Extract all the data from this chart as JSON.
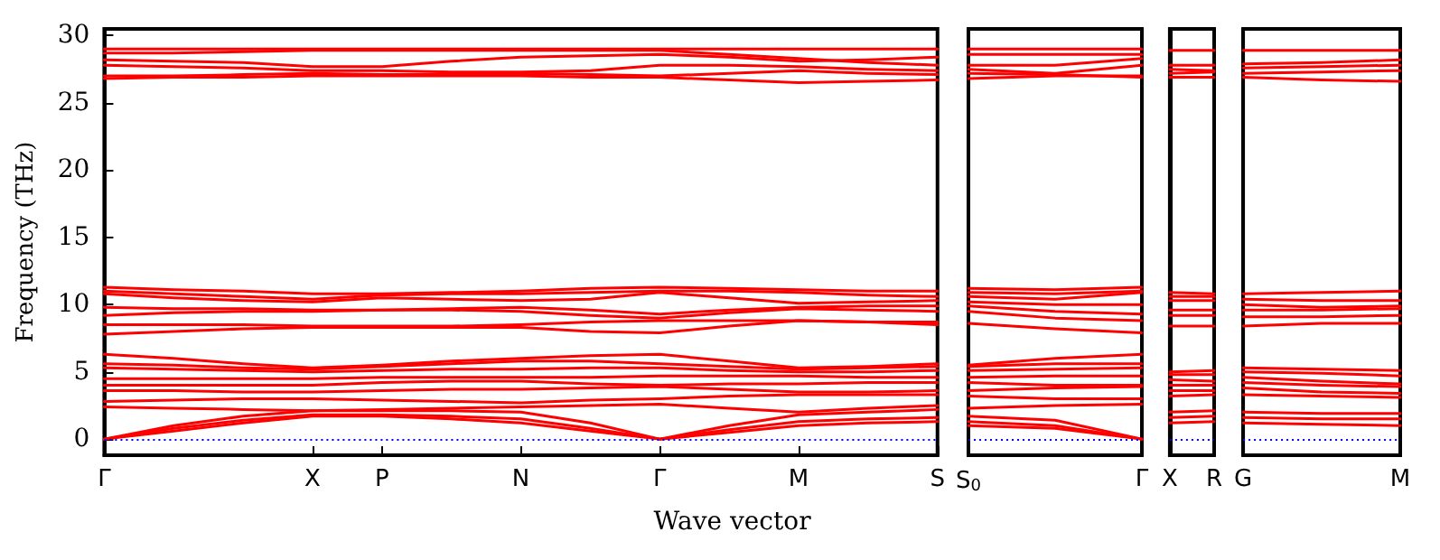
{
  "chart_data": [
    {
      "type": "line",
      "ylabel": "Frequency (THz)",
      "xlabel": "Wave vector",
      "categories": [
        "Γ",
        null,
        null,
        "X",
        "P",
        null,
        "N",
        null,
        "Γ",
        null,
        "M",
        null,
        "S"
      ],
      "ylim": [
        -1.2,
        30.5
      ],
      "yticks": [
        0,
        5,
        10,
        15,
        20,
        25,
        30
      ],
      "marker": "none",
      "line_style": "solid",
      "ref_lines": [
        {
          "axis": "y",
          "value": 0,
          "color": "#0000ff",
          "line_style": "dotted"
        }
      ],
      "series": [
        {
          "color": "#ff0000",
          "values": [
            0,
            0.6,
            1.2,
            1.7,
            1.7,
            1.5,
            1.2,
            0.6,
            0,
            0.5,
            1.0,
            1.2,
            1.3
          ]
        },
        {
          "color": "#ff0000",
          "values": [
            0,
            0.8,
            1.4,
            1.8,
            1.8,
            1.7,
            1.5,
            0.8,
            0,
            0.7,
            1.3,
            1.5,
            1.6
          ]
        },
        {
          "color": "#ff0000",
          "values": [
            0,
            1.0,
            1.7,
            2.1,
            2.1,
            2.1,
            2.0,
            1.2,
            0,
            1.0,
            1.8,
            2.0,
            2.2
          ]
        },
        {
          "color": "#ff0000",
          "values": [
            2.4,
            2.3,
            2.2,
            2.1,
            2.2,
            2.3,
            2.4,
            2.5,
            2.6,
            2.3,
            2.0,
            2.3,
            2.5
          ]
        },
        {
          "color": "#ff0000",
          "values": [
            2.8,
            2.9,
            3.0,
            3.0,
            2.9,
            2.8,
            2.7,
            2.9,
            3.0,
            3.2,
            3.3,
            3.3,
            3.3
          ]
        },
        {
          "color": "#ff0000",
          "values": [
            3.6,
            3.6,
            3.5,
            3.5,
            3.6,
            3.7,
            3.7,
            3.8,
            3.9,
            3.7,
            3.5,
            3.5,
            3.6
          ]
        },
        {
          "color": "#ff0000",
          "values": [
            4.0,
            4.0,
            4.0,
            4.0,
            4.2,
            4.3,
            4.3,
            4.1,
            4.0,
            4.1,
            4.1,
            4.2,
            4.2
          ]
        },
        {
          "color": "#ff0000",
          "values": [
            4.5,
            4.5,
            4.5,
            4.5,
            4.6,
            4.6,
            4.6,
            4.6,
            4.7,
            4.7,
            4.7,
            4.6,
            4.6
          ]
        },
        {
          "color": "#ff0000",
          "values": [
            5.3,
            5.2,
            5.1,
            5.0,
            5.1,
            5.2,
            5.2,
            5.3,
            5.3,
            5.1,
            5.0,
            5.0,
            5.1
          ]
        },
        {
          "color": "#ff0000",
          "values": [
            5.6,
            5.5,
            5.3,
            5.2,
            5.4,
            5.6,
            5.8,
            5.8,
            5.6,
            5.4,
            5.2,
            5.3,
            5.4
          ]
        },
        {
          "color": "#ff0000",
          "values": [
            6.3,
            6.0,
            5.6,
            5.3,
            5.5,
            5.8,
            6.0,
            6.2,
            6.3,
            5.8,
            5.3,
            5.4,
            5.6
          ]
        },
        {
          "color": "#ff0000",
          "values": [
            7.8,
            8.0,
            8.2,
            8.3,
            8.3,
            8.3,
            8.3,
            8.0,
            7.9,
            8.4,
            8.8,
            8.7,
            8.5
          ]
        },
        {
          "color": "#ff0000",
          "values": [
            8.5,
            8.5,
            8.5,
            8.4,
            8.4,
            8.4,
            8.5,
            8.7,
            8.8,
            8.8,
            8.8,
            8.7,
            8.7
          ]
        },
        {
          "color": "#ff0000",
          "values": [
            9.2,
            9.4,
            9.5,
            9.5,
            9.6,
            9.6,
            9.5,
            9.2,
            9.0,
            9.4,
            9.7,
            9.6,
            9.5
          ]
        },
        {
          "color": "#ff0000",
          "values": [
            9.8,
            9.7,
            9.7,
            9.6,
            9.6,
            9.7,
            9.8,
            9.6,
            9.3,
            9.6,
            9.8,
            9.9,
            9.9
          ]
        },
        {
          "color": "#ff0000",
          "values": [
            10.8,
            10.5,
            10.3,
            10.2,
            10.5,
            10.4,
            10.3,
            10.4,
            10.9,
            10.5,
            10.1,
            10.2,
            10.3
          ]
        },
        {
          "color": "#ff0000",
          "values": [
            11.0,
            10.8,
            10.6,
            10.4,
            10.7,
            10.8,
            10.8,
            10.9,
            11.0,
            11.0,
            10.9,
            10.7,
            10.6
          ]
        },
        {
          "color": "#ff0000",
          "values": [
            11.3,
            11.1,
            11.0,
            10.8,
            10.8,
            10.9,
            11.0,
            11.2,
            11.3,
            11.2,
            11.1,
            11.0,
            11.0
          ]
        },
        {
          "color": "#ff0000",
          "values": [
            26.8,
            26.9,
            26.9,
            27.0,
            27.0,
            27.0,
            27.0,
            26.9,
            26.9,
            26.7,
            26.5,
            26.6,
            26.7
          ]
        },
        {
          "color": "#ff0000",
          "values": [
            27.0,
            27.0,
            27.1,
            27.2,
            27.1,
            27.1,
            27.2,
            27.1,
            27.0,
            27.2,
            27.4,
            27.2,
            27.1
          ]
        },
        {
          "color": "#ff0000",
          "values": [
            27.8,
            27.7,
            27.6,
            27.4,
            27.4,
            27.3,
            27.3,
            27.4,
            27.8,
            27.8,
            27.7,
            27.5,
            27.4
          ]
        },
        {
          "color": "#ff0000",
          "values": [
            28.2,
            28.1,
            28.0,
            27.7,
            27.7,
            28.1,
            28.4,
            28.5,
            28.6,
            28.4,
            28.1,
            28.2,
            28.4
          ]
        },
        {
          "color": "#ff0000",
          "values": [
            28.7,
            28.7,
            28.8,
            28.9,
            28.9,
            28.9,
            28.9,
            28.9,
            28.9,
            28.6,
            28.3,
            28.0,
            27.8
          ]
        },
        {
          "color": "#ff0000",
          "values": [
            29.0,
            29.0,
            29.0,
            29.0,
            29.0,
            29.0,
            29.0,
            29.0,
            29.0,
            29.0,
            29.0,
            29.0,
            29.0
          ]
        }
      ]
    },
    {
      "type": "line",
      "categories": [
        "S$_{0}$",
        null,
        "Γ"
      ],
      "ylim": [
        -1.2,
        30.5
      ],
      "yticks": [
        0,
        5,
        10,
        15,
        20,
        25,
        30
      ],
      "tick_labels": "x",
      "marker": "none",
      "line_style": "solid",
      "ref_lines": [
        {
          "axis": "y",
          "value": 0,
          "color": "#0000ff",
          "line_style": "dotted"
        }
      ],
      "series": [
        {
          "color": "#ff0000",
          "values": [
            1.0,
            0.8,
            0
          ]
        },
        {
          "color": "#ff0000",
          "values": [
            1.3,
            1.0,
            0
          ]
        },
        {
          "color": "#ff0000",
          "values": [
            1.7,
            1.4,
            0
          ]
        },
        {
          "color": "#ff0000",
          "values": [
            2.3,
            2.5,
            2.6
          ]
        },
        {
          "color": "#ff0000",
          "values": [
            3.2,
            3.0,
            3.0
          ]
        },
        {
          "color": "#ff0000",
          "values": [
            3.6,
            3.8,
            3.9
          ]
        },
        {
          "color": "#ff0000",
          "values": [
            4.2,
            4.0,
            4.0
          ]
        },
        {
          "color": "#ff0000",
          "values": [
            4.6,
            4.7,
            4.7
          ]
        },
        {
          "color": "#ff0000",
          "values": [
            5.1,
            5.2,
            5.3
          ]
        },
        {
          "color": "#ff0000",
          "values": [
            5.4,
            5.6,
            5.6
          ]
        },
        {
          "color": "#ff0000",
          "values": [
            5.5,
            6.0,
            6.3
          ]
        },
        {
          "color": "#ff0000",
          "values": [
            8.6,
            8.2,
            7.9
          ]
        },
        {
          "color": "#ff0000",
          "values": [
            9.5,
            9.0,
            8.8
          ]
        },
        {
          "color": "#ff0000",
          "values": [
            9.9,
            9.5,
            9.3
          ]
        },
        {
          "color": "#ff0000",
          "values": [
            10.2,
            10.0,
            10.0
          ]
        },
        {
          "color": "#ff0000",
          "values": [
            10.6,
            10.4,
            10.9
          ]
        },
        {
          "color": "#ff0000",
          "values": [
            10.9,
            10.8,
            11.0
          ]
        },
        {
          "color": "#ff0000",
          "values": [
            11.2,
            11.1,
            11.3
          ]
        },
        {
          "color": "#ff0000",
          "values": [
            26.8,
            27.0,
            27.0
          ]
        },
        {
          "color": "#ff0000",
          "values": [
            27.2,
            27.1,
            26.9
          ]
        },
        {
          "color": "#ff0000",
          "values": [
            27.5,
            27.2,
            27.8
          ]
        },
        {
          "color": "#ff0000",
          "values": [
            27.8,
            27.8,
            28.3
          ]
        },
        {
          "color": "#ff0000",
          "values": [
            28.6,
            28.6,
            28.6
          ]
        },
        {
          "color": "#ff0000",
          "values": [
            29.0,
            29.0,
            29.0
          ]
        }
      ]
    },
    {
      "type": "line",
      "categories": [
        "X",
        "R"
      ],
      "ylim": [
        -1.2,
        30.5
      ],
      "yticks": [
        0,
        5,
        10,
        15,
        20,
        25,
        30
      ],
      "tick_labels": "x",
      "marker": "none",
      "line_style": "solid",
      "ref_lines": [
        {
          "axis": "y",
          "value": 0,
          "color": "#0000ff",
          "line_style": "dotted"
        }
      ],
      "series": [
        {
          "color": "#ff0000",
          "values": [
            1.2,
            1.3
          ]
        },
        {
          "color": "#ff0000",
          "values": [
            1.6,
            1.7
          ]
        },
        {
          "color": "#ff0000",
          "values": [
            2.0,
            2.1
          ]
        },
        {
          "color": "#ff0000",
          "values": [
            3.2,
            3.3
          ]
        },
        {
          "color": "#ff0000",
          "values": [
            3.6,
            3.6
          ]
        },
        {
          "color": "#ff0000",
          "values": [
            4.0,
            4.0
          ]
        },
        {
          "color": "#ff0000",
          "values": [
            4.4,
            4.3
          ]
        },
        {
          "color": "#ff0000",
          "values": [
            4.8,
            4.8
          ]
        },
        {
          "color": "#ff0000",
          "values": [
            5.0,
            5.1
          ]
        },
        {
          "color": "#ff0000",
          "values": [
            8.4,
            8.4
          ]
        },
        {
          "color": "#ff0000",
          "values": [
            9.2,
            9.2
          ]
        },
        {
          "color": "#ff0000",
          "values": [
            9.6,
            9.6
          ]
        },
        {
          "color": "#ff0000",
          "values": [
            10.3,
            10.3
          ]
        },
        {
          "color": "#ff0000",
          "values": [
            10.6,
            10.6
          ]
        },
        {
          "color": "#ff0000",
          "values": [
            10.9,
            10.8
          ]
        },
        {
          "color": "#ff0000",
          "values": [
            26.9,
            26.9
          ]
        },
        {
          "color": "#ff0000",
          "values": [
            27.2,
            27.3
          ]
        },
        {
          "color": "#ff0000",
          "values": [
            27.5,
            27.4
          ]
        },
        {
          "color": "#ff0000",
          "values": [
            27.8,
            27.8
          ]
        },
        {
          "color": "#ff0000",
          "values": [
            28.9,
            28.9
          ]
        }
      ]
    },
    {
      "type": "line",
      "categories": [
        "G",
        null,
        "M"
      ],
      "ylim": [
        -1.2,
        30.5
      ],
      "yticks": [
        0,
        5,
        10,
        15,
        20,
        25,
        30
      ],
      "tick_labels": "x",
      "marker": "none",
      "line_style": "solid",
      "ref_lines": [
        {
          "axis": "y",
          "value": 0,
          "color": "#0000ff",
          "line_style": "dotted"
        }
      ],
      "series": [
        {
          "color": "#ff0000",
          "values": [
            1.2,
            1.1,
            1.0
          ]
        },
        {
          "color": "#ff0000",
          "values": [
            1.6,
            1.5,
            1.5
          ]
        },
        {
          "color": "#ff0000",
          "values": [
            2.0,
            1.9,
            1.9
          ]
        },
        {
          "color": "#ff0000",
          "values": [
            3.3,
            3.2,
            3.1
          ]
        },
        {
          "color": "#ff0000",
          "values": [
            3.8,
            3.5,
            3.4
          ]
        },
        {
          "color": "#ff0000",
          "values": [
            4.2,
            4.0,
            3.9
          ]
        },
        {
          "color": "#ff0000",
          "values": [
            4.6,
            4.3,
            4.1
          ]
        },
        {
          "color": "#ff0000",
          "values": [
            5.0,
            4.9,
            4.7
          ]
        },
        {
          "color": "#ff0000",
          "values": [
            5.3,
            5.2,
            5.1
          ]
        },
        {
          "color": "#ff0000",
          "values": [
            8.4,
            8.6,
            8.6
          ]
        },
        {
          "color": "#ff0000",
          "values": [
            9.1,
            9.1,
            9.2
          ]
        },
        {
          "color": "#ff0000",
          "values": [
            9.6,
            9.6,
            9.7
          ]
        },
        {
          "color": "#ff0000",
          "values": [
            10.0,
            9.8,
            9.9
          ]
        },
        {
          "color": "#ff0000",
          "values": [
            10.4,
            10.3,
            10.3
          ]
        },
        {
          "color": "#ff0000",
          "values": [
            10.8,
            10.9,
            11.0
          ]
        },
        {
          "color": "#ff0000",
          "values": [
            26.9,
            26.7,
            26.6
          ]
        },
        {
          "color": "#ff0000",
          "values": [
            27.2,
            27.3,
            27.4
          ]
        },
        {
          "color": "#ff0000",
          "values": [
            27.6,
            27.7,
            27.8
          ]
        },
        {
          "color": "#ff0000",
          "values": [
            27.9,
            28.0,
            28.2
          ]
        },
        {
          "color": "#ff0000",
          "values": [
            28.9,
            28.9,
            28.9
          ]
        }
      ]
    }
  ]
}
